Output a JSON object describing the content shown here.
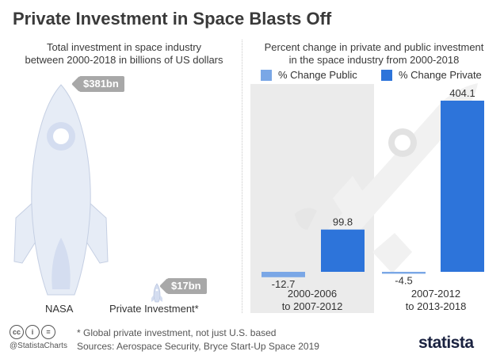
{
  "title": "Private Investment in Space Blasts Off",
  "left_panel": {
    "subtitle_line1": "Total investment in space industry",
    "subtitle_line2": "between 2000-2018 in billions of US dollars",
    "nasa": {
      "label": "NASA",
      "value": 381,
      "tag": "$381bn"
    },
    "private": {
      "label": "Private Investment*",
      "value": 17,
      "tag": "$17bn"
    }
  },
  "chart_data": {
    "type": "bar",
    "title": "Percent change in private and public investment in the space industry from 2000-2018",
    "title_line1": "Percent change in private and public investment",
    "title_line2": "in the space industry from 2000-2018",
    "categories": [
      [
        "2000-2006",
        "to 2007-2012"
      ],
      [
        "2007-2012",
        "to 2013-2018"
      ]
    ],
    "series": [
      {
        "name": "% Change Public",
        "color": "#7aa7e6",
        "values": [
          -12.7,
          -4.5
        ],
        "labels": [
          "-12.7",
          "-4.5"
        ]
      },
      {
        "name": "% Change Private",
        "color": "#2d74da",
        "values": [
          99.8,
          404.1
        ],
        "labels": [
          "99.8",
          "404.1"
        ]
      }
    ],
    "ylim": [
      -20,
      404.1
    ],
    "legend": "top",
    "highlight_category": 0,
    "xlabel": "",
    "ylabel": ""
  },
  "footer": {
    "footnote": "* Global private investment, not just U.S. based",
    "sources": "Sources: Aerospace Security, Bryce Start-Up Space 2019",
    "handle": "@StatistaCharts",
    "brand": "statista"
  },
  "colors": {
    "bg_highlight": "#ebebeb",
    "rocket_fill": "#e6ecf6",
    "rocket_window": "#d4ddf0",
    "tag": "#a8a8a8"
  }
}
